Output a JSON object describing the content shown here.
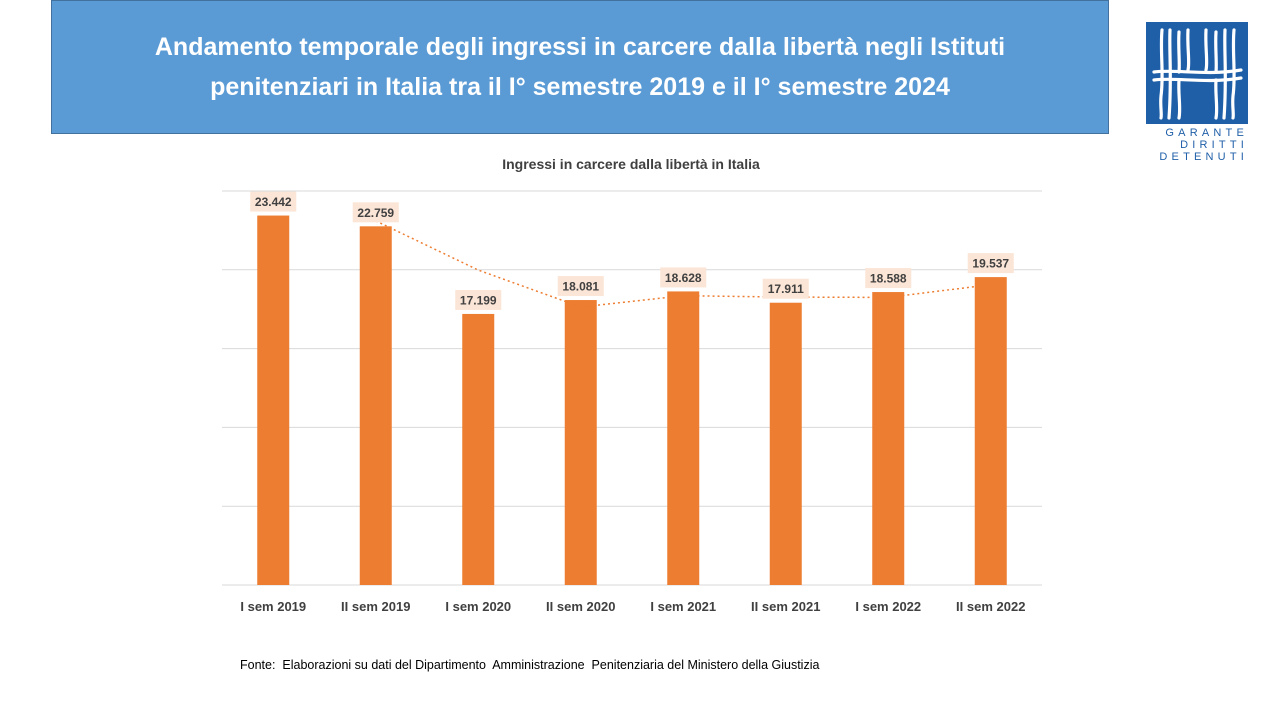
{
  "header": {
    "title": "Andamento temporale degli ingressi in carcere dalla libertà negli Istituti penitenziari in Italia tra il I° semestre 2019 e il I° semestre 2024"
  },
  "logo": {
    "lines": [
      "GARANTE",
      "DIRITTI",
      "DETENUTI"
    ]
  },
  "chart_data": {
    "type": "bar",
    "title": "Ingressi in carcere dalla libertà in Italia",
    "categories": [
      "I sem 2019",
      "II sem 2019",
      "I sem 2020",
      "II sem 2020",
      "I sem 2021",
      "II sem 2021",
      "I sem 2022",
      "II sem 2022"
    ],
    "values": [
      23442,
      22759,
      17199,
      18081,
      18628,
      17911,
      18588,
      19537
    ],
    "data_labels": [
      "23.442",
      "22.759",
      "17.199",
      "18.081",
      "18.628",
      "17.911",
      "18.588",
      "19.537"
    ],
    "ylim": [
      0,
      25000
    ],
    "gridlines": true,
    "trendline": "moving-average",
    "colors": {
      "bar": "#ed7d31",
      "label_bg": "#fbe5d6",
      "trend": "#ed7d31",
      "grid": "#d9d9d9"
    }
  },
  "footer": {
    "source": "Fonte:  Elaborazioni su dati del Dipartimento  Amministrazione  Penitenziaria del Ministero della Giustizia"
  }
}
